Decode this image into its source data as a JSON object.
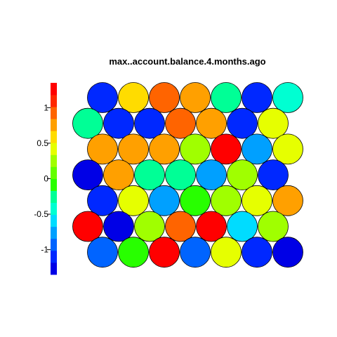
{
  "chart_data": {
    "type": "heatmap",
    "subtype": "hexagonal-som-map",
    "title": "max..account.balance.4.months.ago",
    "grid": false,
    "legend": "left",
    "color_scale": {
      "range": [
        -1.35,
        1.35
      ],
      "ticks": [
        {
          "value": 1,
          "label": "1"
        },
        {
          "value": 0.5,
          "label": "0.5"
        },
        {
          "value": 0,
          "label": "0"
        },
        {
          "value": -0.5,
          "label": "-0.5"
        },
        {
          "value": -1,
          "label": "-1"
        }
      ],
      "colors": [
        "#0000e6",
        "#0028ff",
        "#0064ff",
        "#00a0ff",
        "#00dcff",
        "#00ffd2",
        "#00ff96",
        "#28ff00",
        "#64ff00",
        "#a0ff00",
        "#e6ff00",
        "#ffdc00",
        "#ffa000",
        "#ff6400",
        "#ff2800",
        "#ff0000"
      ]
    },
    "nodes": [
      [
        -1.15,
        0.62,
        0.85,
        0.72,
        -0.25,
        -1.15,
        -0.38
      ],
      [
        -0.28,
        -1.15,
        -1.15,
        0.98,
        0.82,
        -1.15,
        0.35
      ],
      [
        0.75,
        0.75,
        0.72,
        0.18,
        1.25,
        -0.78,
        0.45
      ],
      [
        -1.3,
        0.75,
        -0.25,
        -0.28,
        -0.75,
        0.28,
        -1.15
      ],
      [
        -1.15,
        0.35,
        -0.75,
        -0.15,
        0.28,
        0.35,
        0.72
      ],
      [
        1.25,
        -1.3,
        0.18,
        0.98,
        1.25,
        -0.55,
        0.18
      ],
      [
        -0.98,
        -0.05,
        1.25,
        -0.98,
        0.45,
        -1.15,
        -1.3
      ]
    ]
  }
}
